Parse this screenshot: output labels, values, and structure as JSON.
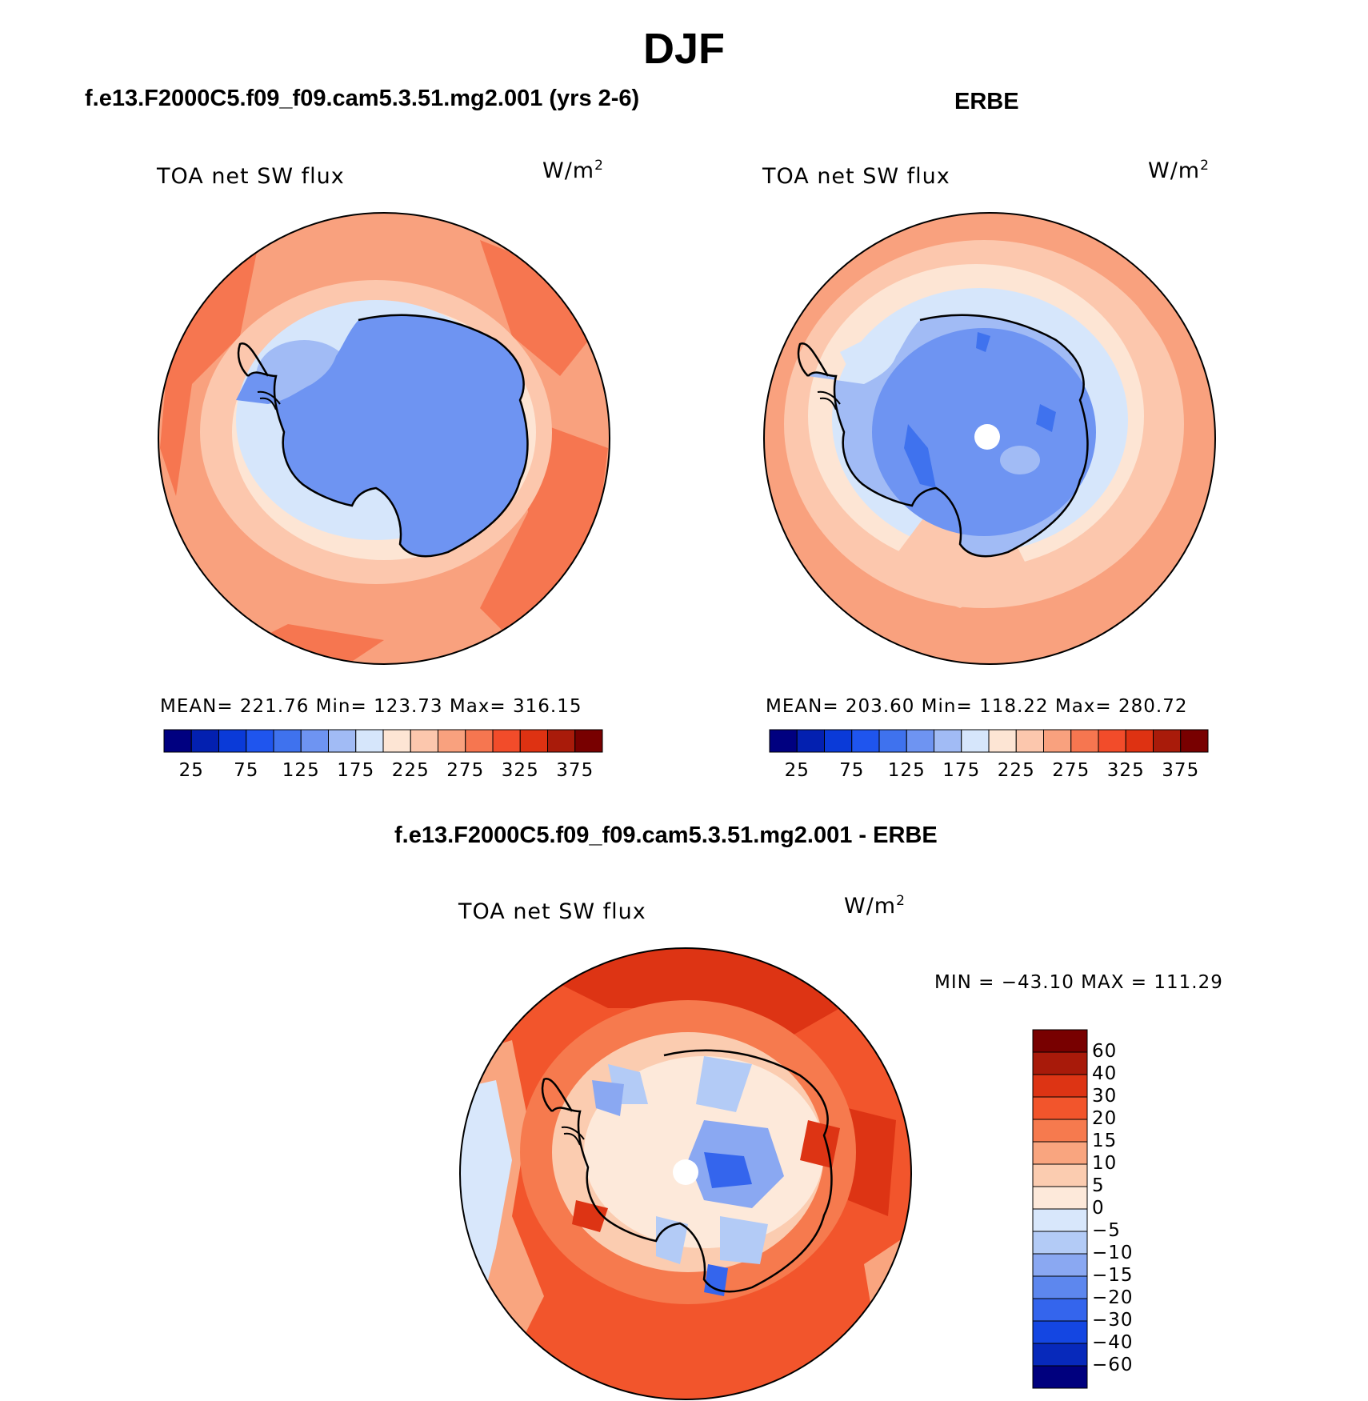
{
  "title": "DJF",
  "panels": [
    {
      "id": "model",
      "title": "f.e13.F2000C5.f09_f09.cam5.3.51.mg2.001 (yrs 2-6)",
      "variable": "TOA net SW flux",
      "units": "W/m",
      "units_sup": "2",
      "stats": "MEAN= 221.76   Min= 123.73   Max= 316.15"
    },
    {
      "id": "obs",
      "title": "ERBE",
      "variable": "TOA net SW flux",
      "units": "W/m",
      "units_sup": "2",
      "stats": "MEAN= 203.60   Min= 118.22   Max= 280.72"
    },
    {
      "id": "diff",
      "title": "f.e13.F2000C5.f09_f09.cam5.3.51.mg2.001 - ERBE",
      "variable": "TOA net SW flux",
      "units": "W/m",
      "units_sup": "2",
      "stats": "MIN = −43.10 MAX = 111.29"
    }
  ],
  "abs_colorbar": {
    "colors": [
      "#000080",
      "#0320b0",
      "#0a3ad8",
      "#1f55ee",
      "#3f72ee",
      "#6e94f2",
      "#a1bbf5",
      "#d6e6fb",
      "#fde5d4",
      "#fcc7ad",
      "#f9a17e",
      "#f67650",
      "#f24c2a",
      "#de3212",
      "#a91b0a",
      "#780000"
    ],
    "labels": [
      "25",
      "75",
      "125",
      "175",
      "225",
      "275",
      "325",
      "375"
    ]
  },
  "diff_colorbar": {
    "colors": [
      "#780000",
      "#a81a0a",
      "#dd3414",
      "#f2552c",
      "#f67a4e",
      "#f9a57f",
      "#fbccb0",
      "#fde9da",
      "#d8e7fb",
      "#b3cbf6",
      "#8aa8f2",
      "#5d87ee",
      "#3465ed",
      "#1446e2",
      "#0729bb",
      "#00007e"
    ],
    "labels": [
      "60",
      "40",
      "30",
      "20",
      "15",
      "10",
      "5",
      "0",
      "−5",
      "−10",
      "−15",
      "−20",
      "−30",
      "−40",
      "−60"
    ]
  }
}
